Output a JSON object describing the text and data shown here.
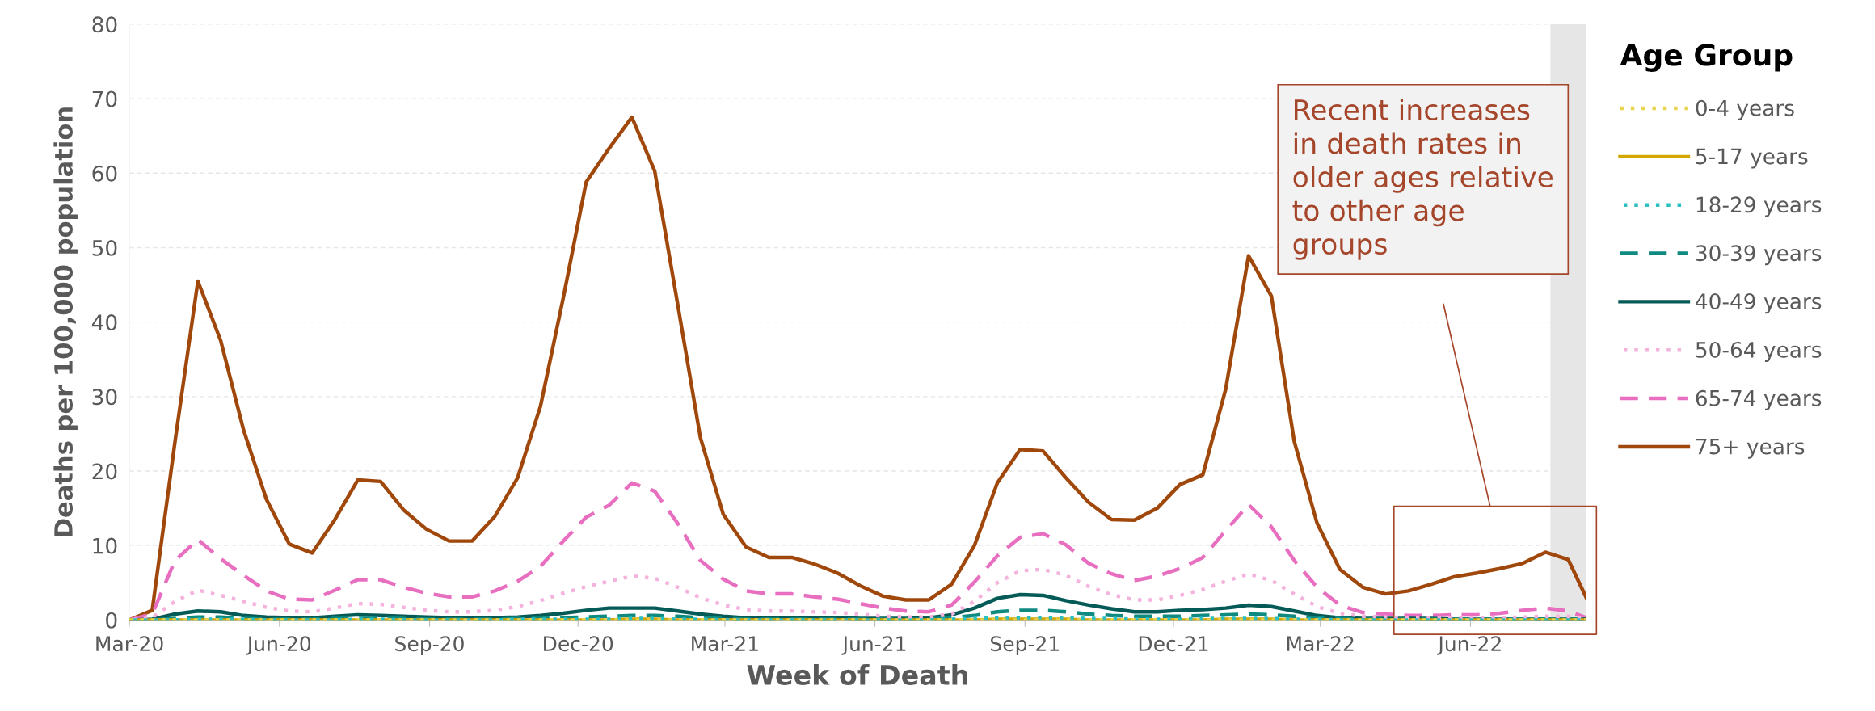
{
  "chart_data": {
    "type": "line",
    "xlabel": "Week of Death",
    "ylabel": "Deaths per 100,000 population",
    "legend_title": "Age Group",
    "x": [
      "2020-03-01",
      "2020-03-15",
      "2020-03-29",
      "2020-04-12",
      "2020-04-26",
      "2020-05-10",
      "2020-05-24",
      "2020-06-07",
      "2020-06-21",
      "2020-07-05",
      "2020-07-19",
      "2020-08-02",
      "2020-08-16",
      "2020-08-30",
      "2020-09-13",
      "2020-09-27",
      "2020-10-11",
      "2020-10-25",
      "2020-11-08",
      "2020-11-22",
      "2020-12-06",
      "2020-12-20",
      "2021-01-03",
      "2021-01-17",
      "2021-01-31",
      "2021-02-14",
      "2021-02-28",
      "2021-03-14",
      "2021-03-28",
      "2021-04-11",
      "2021-04-25",
      "2021-05-09",
      "2021-05-23",
      "2021-06-06",
      "2021-06-20",
      "2021-07-04",
      "2021-07-18",
      "2021-08-01",
      "2021-08-15",
      "2021-08-29",
      "2021-09-12",
      "2021-09-26",
      "2021-10-10",
      "2021-10-24",
      "2021-11-07",
      "2021-11-21",
      "2021-12-05",
      "2021-12-19",
      "2022-01-02",
      "2022-01-16",
      "2022-01-30",
      "2022-02-13",
      "2022-02-27",
      "2022-03-13",
      "2022-03-27",
      "2022-04-10",
      "2022-04-24",
      "2022-05-08",
      "2022-05-22",
      "2022-06-05",
      "2022-06-19",
      "2022-07-03",
      "2022-07-17",
      "2022-07-31",
      "2022-08-11"
    ],
    "xlim": [
      "2020-03-01",
      "2022-08-11"
    ],
    "xticks": [
      {
        "value": "2020-03-01",
        "label": "Mar-20"
      },
      {
        "value": "2020-06-01",
        "label": "Jun-20"
      },
      {
        "value": "2020-09-01",
        "label": "Sep-20"
      },
      {
        "value": "2020-12-01",
        "label": "Dec-20"
      },
      {
        "value": "2021-03-01",
        "label": "Mar-21"
      },
      {
        "value": "2021-06-01",
        "label": "Jun-21"
      },
      {
        "value": "2021-09-01",
        "label": "Sep-21"
      },
      {
        "value": "2021-12-01",
        "label": "Dec-21"
      },
      {
        "value": "2022-03-01",
        "label": "Mar-22"
      },
      {
        "value": "2022-06-01",
        "label": "Jun-22"
      }
    ],
    "ylim": [
      0,
      80
    ],
    "yticks": [
      0,
      10,
      20,
      30,
      40,
      50,
      60,
      70,
      80
    ],
    "grid": "y",
    "legend": "right",
    "bands": [
      {
        "axis": "x",
        "from": "2022-07-20",
        "to": "2022-08-11",
        "color": "#e6e6e6"
      }
    ],
    "annotations": [
      "Recent increases\nin death rates in\nolder ages relative\nto other age\ngroups"
    ],
    "series": [
      {
        "name": "0-4 years",
        "color": "#e8d44d",
        "line_style": "dotted",
        "values": [
          0,
          0,
          0,
          0,
          0,
          0,
          0,
          0,
          0,
          0,
          0,
          0,
          0,
          0,
          0,
          0,
          0,
          0,
          0,
          0,
          0,
          0,
          0,
          0,
          0,
          0,
          0,
          0,
          0,
          0,
          0,
          0,
          0,
          0,
          0,
          0,
          0,
          0,
          0,
          0,
          0,
          0,
          0,
          0,
          0,
          0,
          0,
          0,
          0,
          0,
          0,
          0,
          0,
          0,
          0,
          0,
          0,
          0,
          0,
          0,
          0,
          0,
          0,
          0,
          0
        ]
      },
      {
        "name": "5-17 years",
        "color": "#d4a600",
        "line_style": "solid",
        "values": [
          0,
          0,
          0,
          0,
          0,
          0,
          0,
          0,
          0,
          0,
          0,
          0,
          0,
          0,
          0,
          0,
          0,
          0,
          0,
          0,
          0,
          0,
          0.1,
          0.1,
          0,
          0,
          0,
          0,
          0,
          0,
          0,
          0,
          0,
          0,
          0,
          0,
          0,
          0,
          0.1,
          0.1,
          0.1,
          0.1,
          0,
          0,
          0,
          0,
          0,
          0,
          0.1,
          0.1,
          0.1,
          0,
          0,
          0,
          0,
          0,
          0,
          0,
          0,
          0,
          0,
          0,
          0,
          0,
          0
        ]
      },
      {
        "name": "18-29 years",
        "color": "#2bbfbf",
        "line_style": "dotted",
        "values": [
          0,
          0,
          0,
          0.1,
          0.1,
          0.1,
          0,
          0,
          0,
          0,
          0.1,
          0.1,
          0,
          0,
          0,
          0,
          0,
          0.1,
          0.1,
          0.1,
          0.1,
          0.1,
          0.2,
          0.2,
          0.1,
          0.1,
          0,
          0,
          0,
          0,
          0,
          0,
          0,
          0,
          0,
          0,
          0.1,
          0.2,
          0.3,
          0.3,
          0.3,
          0.3,
          0.2,
          0.2,
          0.1,
          0.1,
          0.1,
          0.2,
          0.2,
          0.2,
          0.2,
          0.1,
          0.1,
          0,
          0,
          0,
          0,
          0,
          0,
          0,
          0,
          0,
          0,
          0,
          0
        ]
      },
      {
        "name": "30-39 years",
        "color": "#0f8a80",
        "line_style": "dashed",
        "values": [
          0,
          0,
          0.2,
          0.4,
          0.4,
          0.2,
          0.1,
          0.1,
          0.1,
          0.2,
          0.2,
          0.2,
          0.2,
          0.1,
          0.1,
          0.1,
          0.1,
          0.2,
          0.2,
          0.3,
          0.4,
          0.5,
          0.6,
          0.6,
          0.5,
          0.3,
          0.2,
          0.1,
          0.1,
          0.1,
          0.1,
          0.1,
          0.1,
          0.1,
          0.1,
          0.1,
          0.3,
          0.6,
          1.1,
          1.3,
          1.3,
          1.1,
          0.8,
          0.6,
          0.5,
          0.5,
          0.5,
          0.6,
          0.7,
          0.8,
          0.7,
          0.5,
          0.3,
          0.2,
          0.1,
          0.1,
          0.1,
          0.1,
          0.1,
          0.1,
          0.1,
          0.1,
          0.1,
          0.1,
          0.1
        ]
      },
      {
        "name": "40-49 years",
        "color": "#045a56",
        "line_style": "solid",
        "values": [
          0,
          0.1,
          0.8,
          1.2,
          1.1,
          0.6,
          0.4,
          0.3,
          0.3,
          0.5,
          0.7,
          0.6,
          0.5,
          0.4,
          0.3,
          0.3,
          0.3,
          0.4,
          0.6,
          0.9,
          1.3,
          1.6,
          1.6,
          1.6,
          1.2,
          0.8,
          0.5,
          0.3,
          0.3,
          0.3,
          0.3,
          0.3,
          0.2,
          0.2,
          0.2,
          0.3,
          0.7,
          1.6,
          2.9,
          3.4,
          3.3,
          2.6,
          2,
          1.5,
          1.1,
          1.1,
          1.3,
          1.4,
          1.6,
          2,
          1.8,
          1.2,
          0.6,
          0.3,
          0.2,
          0.2,
          0.2,
          0.2,
          0.1,
          0.1,
          0.1,
          0.1,
          0.1,
          0.1,
          0.1
        ]
      },
      {
        "name": "50-64 years",
        "color": "#f4b3dc",
        "line_style": "dotted",
        "values": [
          0,
          0.3,
          2.5,
          4,
          3.3,
          2.5,
          1.7,
          1.2,
          1.1,
          1.6,
          2.2,
          2.1,
          1.7,
          1.3,
          1.1,
          1.1,
          1.3,
          1.8,
          2.6,
          3.6,
          4.5,
          5.2,
          5.9,
          5.6,
          4.4,
          3,
          2,
          1.4,
          1.2,
          1.2,
          1.1,
          1,
          0.8,
          0.5,
          0.4,
          0.4,
          0.8,
          2.5,
          5,
          6.6,
          6.8,
          6,
          4.5,
          3.4,
          2.7,
          2.7,
          3.3,
          4.1,
          5.2,
          6.2,
          5.3,
          3.5,
          1.8,
          0.9,
          0.5,
          0.4,
          0.3,
          0.3,
          0.3,
          0.3,
          0.3,
          0.4,
          0.5,
          0.5,
          0.2
        ]
      },
      {
        "name": "65-74 years",
        "color": "#e86ec0",
        "line_style": "dashed",
        "values": [
          0,
          0.8,
          8,
          10.8,
          8.2,
          6,
          3.9,
          2.8,
          2.7,
          4,
          5.4,
          5.4,
          4.4,
          3.6,
          3.1,
          3.1,
          3.9,
          5.2,
          7.2,
          10.6,
          13.8,
          15.4,
          18.4,
          17.3,
          13,
          8,
          5.5,
          3.9,
          3.5,
          3.5,
          3.1,
          2.8,
          2.2,
          1.6,
          1.2,
          1.1,
          2,
          5.1,
          8.6,
          11.1,
          11.6,
          10.1,
          7.6,
          6.2,
          5.3,
          5.9,
          6.9,
          8.4,
          12,
          15.5,
          12.5,
          8,
          4.4,
          2,
          1,
          0.8,
          0.6,
          0.6,
          0.7,
          0.7,
          0.9,
          1.3,
          1.6,
          1.2,
          0.3
        ]
      },
      {
        "name": "75+ years",
        "color": "#a0480c",
        "line_style": "solid",
        "values": [
          0,
          1.3,
          24,
          45.5,
          37.5,
          25.5,
          16.2,
          10.2,
          9,
          13.5,
          18.8,
          18.6,
          14.8,
          12.2,
          10.6,
          10.6,
          13.9,
          19.1,
          28.7,
          43.3,
          58.8,
          63.3,
          67.5,
          60.3,
          42.5,
          24.5,
          14.2,
          9.8,
          8.4,
          8.4,
          7.5,
          6.3,
          4.6,
          3.2,
          2.7,
          2.7,
          4.8,
          10,
          18.4,
          22.9,
          22.7,
          19.1,
          15.8,
          13.5,
          13.4,
          15,
          18.2,
          19.5,
          31,
          48.9,
          43.5,
          24,
          13,
          6.8,
          4.4,
          3.5,
          3.9,
          4.8,
          5.8,
          6.3,
          6.9,
          7.6,
          9.1,
          8.1,
          3
        ]
      }
    ]
  }
}
